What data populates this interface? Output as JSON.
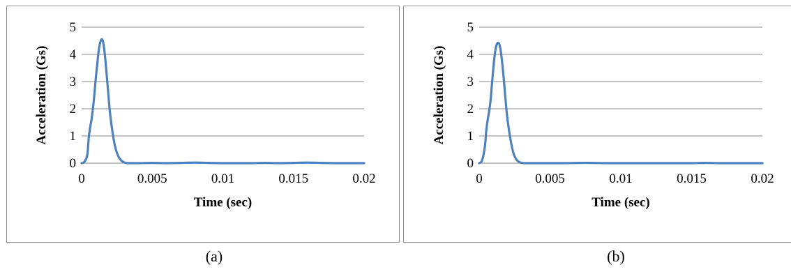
{
  "chart_data": [
    {
      "type": "line",
      "xlabel": "Time (sec)",
      "ylabel": "Acceleration (Gs)",
      "xlim": [
        0,
        0.02
      ],
      "ylim": [
        0,
        5
      ],
      "xticks": [
        "0",
        "0.005",
        "0.01",
        "0.015",
        "0.02"
      ],
      "yticks": [
        "0",
        "1",
        "2",
        "3",
        "4",
        "5"
      ],
      "grid": "horizontal",
      "line_color": "#4f81bd",
      "series": [
        {
          "x": [
            0,
            0.0002,
            0.0004,
            0.0005,
            0.0006,
            0.0007,
            0.0008,
            0.0009,
            0.001,
            0.0011,
            0.0012,
            0.0013,
            0.0014,
            0.0015,
            0.0016,
            0.0017,
            0.0018,
            0.0019,
            0.002,
            0.0022,
            0.0024,
            0.0026,
            0.0028,
            0.003,
            0.0032,
            0.0034,
            0.004,
            0.005,
            0.006,
            0.007,
            0.008,
            0.009,
            0.01,
            0.011,
            0.012,
            0.013,
            0.014,
            0.015,
            0.016,
            0.017,
            0.018,
            0.019,
            0.02
          ],
          "y": [
            0,
            0.05,
            0.3,
            0.9,
            1.3,
            1.6,
            2.0,
            2.5,
            3.1,
            3.6,
            4.1,
            4.4,
            4.55,
            4.5,
            4.2,
            3.7,
            3.1,
            2.5,
            1.9,
            1.1,
            0.55,
            0.25,
            0.1,
            0.03,
            0.0,
            0.0,
            0.0,
            0.01,
            0.0,
            0.01,
            0.02,
            0.01,
            0.0,
            0.0,
            0.0,
            0.01,
            0.0,
            0.01,
            0.02,
            0.01,
            0.0,
            0.0,
            0.0
          ]
        }
      ]
    },
    {
      "type": "line",
      "xlabel": "Time (sec)",
      "ylabel": "Acceleration (Gs)",
      "xlim": [
        0,
        0.02
      ],
      "ylim": [
        0,
        5
      ],
      "xticks": [
        "0",
        "0.005",
        "0.01",
        "0.015",
        "0.02"
      ],
      "yticks": [
        "0",
        "1",
        "2",
        "3",
        "4",
        "5"
      ],
      "grid": "horizontal",
      "line_color": "#4f81bd",
      "series": [
        {
          "x": [
            0,
            0.0002,
            0.0004,
            0.0005,
            0.0006,
            0.0007,
            0.0008,
            0.0009,
            0.001,
            0.0011,
            0.0012,
            0.0013,
            0.0014,
            0.0015,
            0.0016,
            0.0017,
            0.0018,
            0.0019,
            0.002,
            0.0022,
            0.0024,
            0.0026,
            0.0028,
            0.003,
            0.0032,
            0.0034,
            0.004,
            0.005,
            0.006,
            0.007,
            0.008,
            0.009,
            0.01,
            0.011,
            0.012,
            0.013,
            0.014,
            0.015,
            0.016,
            0.017,
            0.018,
            0.019,
            0.02
          ],
          "y": [
            0,
            0.1,
            0.6,
            1.2,
            1.6,
            1.9,
            2.3,
            2.9,
            3.5,
            4.0,
            4.3,
            4.42,
            4.4,
            4.2,
            3.8,
            3.3,
            2.7,
            2.1,
            1.6,
            0.9,
            0.4,
            0.15,
            0.05,
            0.01,
            0.0,
            0.0,
            0.0,
            0.0,
            0.0,
            0.01,
            0.01,
            0.0,
            0.0,
            0.0,
            0.0,
            0.0,
            0.0,
            0.0,
            0.01,
            0.0,
            0.0,
            0.0,
            0.0
          ]
        }
      ]
    }
  ],
  "captions": [
    "(a)",
    "(b)"
  ]
}
